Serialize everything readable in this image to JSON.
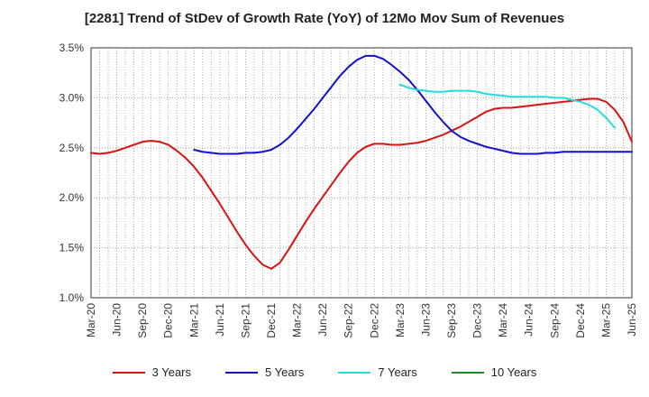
{
  "chart_data": {
    "type": "line",
    "title": "[2281]  Trend of StDev of Growth Rate (YoY) of 12Mo Mov Sum of Revenues",
    "xlabel": "",
    "ylabel": "",
    "ylim": [
      1.0,
      3.5
    ],
    "y_ticks": [
      "1.0%",
      "1.5%",
      "2.0%",
      "2.5%",
      "3.0%",
      "3.5%"
    ],
    "y_tick_values": [
      1.0,
      1.5,
      2.0,
      2.5,
      3.0,
      3.5
    ],
    "x_ticks": [
      "Mar-20",
      "Jun-20",
      "Sep-20",
      "Dec-20",
      "Mar-21",
      "Jun-21",
      "Sep-21",
      "Dec-21",
      "Mar-22",
      "Jun-22",
      "Sep-22",
      "Dec-22",
      "Mar-23",
      "Jun-23",
      "Sep-23",
      "Dec-23",
      "Mar-24",
      "Jun-24",
      "Sep-24",
      "Dec-24",
      "Mar-25",
      "Jun-25"
    ],
    "grid": true,
    "legend_position": "bottom",
    "series": [
      {
        "name": "3 Years",
        "color": "#dd1111",
        "start_index": 0,
        "values": [
          2.45,
          2.44,
          2.45,
          2.47,
          2.5,
          2.53,
          2.56,
          2.57,
          2.56,
          2.53,
          2.47,
          2.4,
          2.31,
          2.2,
          2.07,
          1.94,
          1.8,
          1.66,
          1.53,
          1.42,
          1.33,
          1.29,
          1.35,
          1.48,
          1.62,
          1.76,
          1.89,
          2.01,
          2.13,
          2.25,
          2.36,
          2.45,
          2.51,
          2.54,
          2.54,
          2.53,
          2.53,
          2.54,
          2.55,
          2.57,
          2.6,
          2.63,
          2.67,
          2.71,
          2.76,
          2.81,
          2.86,
          2.89,
          2.9,
          2.9,
          2.91,
          2.92,
          2.93,
          2.94,
          2.95,
          2.96,
          2.97,
          2.98,
          2.99,
          2.99,
          2.96,
          2.88,
          2.76,
          2.56
        ]
      },
      {
        "name": "5 Years",
        "color": "#1111cc",
        "start_index": 12,
        "values": [
          2.48,
          2.46,
          2.45,
          2.44,
          2.44,
          2.44,
          2.45,
          2.45,
          2.46,
          2.48,
          2.53,
          2.6,
          2.69,
          2.79,
          2.89,
          3.0,
          3.11,
          3.22,
          3.31,
          3.38,
          3.42,
          3.42,
          3.39,
          3.33,
          3.26,
          3.18,
          3.08,
          2.97,
          2.86,
          2.76,
          2.67,
          2.61,
          2.57,
          2.54,
          2.51,
          2.49,
          2.47,
          2.45,
          2.44,
          2.44,
          2.44,
          2.45,
          2.45,
          2.46,
          2.46,
          2.46,
          2.46,
          2.46,
          2.46,
          2.46,
          2.46,
          2.46
        ]
      },
      {
        "name": "7 Years",
        "color": "#22dddd",
        "start_index": 36,
        "values": [
          3.13,
          3.1,
          3.08,
          3.07,
          3.06,
          3.06,
          3.07,
          3.07,
          3.07,
          3.06,
          3.04,
          3.03,
          3.02,
          3.01,
          3.01,
          3.01,
          3.01,
          3.01,
          3.0,
          3.0,
          2.98,
          2.96,
          2.93,
          2.88,
          2.8,
          2.7
        ]
      },
      {
        "name": "10 Years",
        "color": "#228822",
        "start_index": 0,
        "values": []
      }
    ]
  }
}
